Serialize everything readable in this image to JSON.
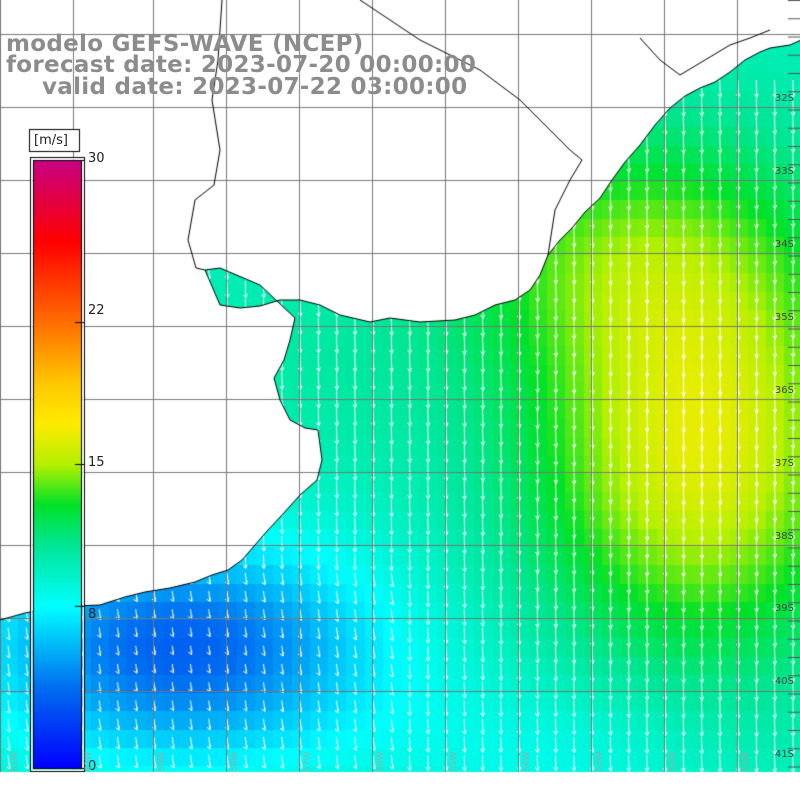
{
  "title": {
    "line1": "modelo GEFS-WAVE (NCEP)",
    "line2": "forecast date: 2023-07-20 00:00:00",
    "line3": "valid date: 2023-07-22 03:00:00"
  },
  "colorbar": {
    "unit": "[m/s]",
    "min": 0,
    "max": 30,
    "tick_labels": [
      "30",
      "22",
      "15",
      "8",
      "0"
    ],
    "tick_values": [
      30,
      22,
      15,
      8,
      0
    ]
  },
  "latitude_labels": [
    "32S",
    "33S",
    "34S",
    "35S",
    "36S",
    "37S",
    "38S",
    "39S",
    "40S",
    "41S"
  ],
  "latitude_values": [
    32,
    33,
    34,
    35,
    36,
    37,
    38,
    39,
    40,
    41
  ],
  "longitude_labels": [
    "61W",
    "60W",
    "59W",
    "58W",
    "57W",
    "56W",
    "55W",
    "54W",
    "53W",
    "52W",
    "51W"
  ],
  "colors": {
    "land": "#ffffff",
    "coast": "#000000",
    "grid": "#777777",
    "title_text": "#8c8c8c",
    "arrows": "#ffffff"
  },
  "wind_field": {
    "variable": "wind speed",
    "unit": "m/s",
    "general_direction": "from north / north-northwest (arrows pointing south-southeast)",
    "regions": [
      {
        "area": "inner Rio de la Plata estuary",
        "speed_range_ms": [
          9,
          11
        ]
      },
      {
        "area": "Uruguay coast offshore",
        "speed_range_ms": [
          12,
          15
        ]
      },
      {
        "area": "east of 53W between 34S and 39S",
        "speed_range_ms": [
          15,
          17
        ]
      },
      {
        "area": "south of 38S west of 57W",
        "speed_range_ms": [
          4,
          6
        ]
      },
      {
        "area": "southeast corner",
        "speed_range_ms": [
          10,
          13
        ]
      }
    ]
  }
}
